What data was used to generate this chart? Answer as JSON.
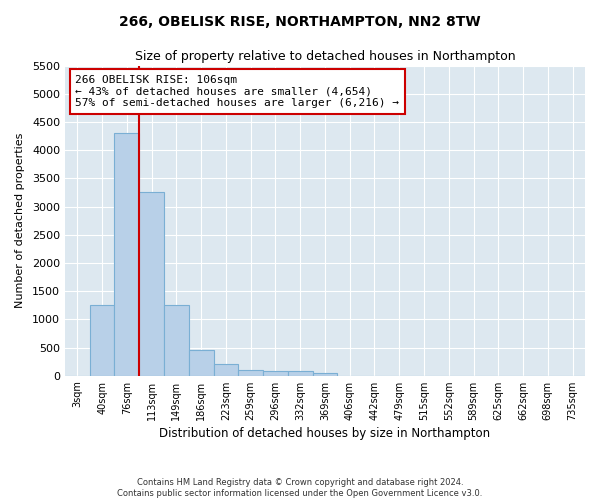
{
  "title1": "266, OBELISK RISE, NORTHAMPTON, NN2 8TW",
  "title2": "Size of property relative to detached houses in Northampton",
  "xlabel": "Distribution of detached houses by size in Northampton",
  "ylabel": "Number of detached properties",
  "categories": [
    "3sqm",
    "40sqm",
    "76sqm",
    "113sqm",
    "149sqm",
    "186sqm",
    "223sqm",
    "259sqm",
    "296sqm",
    "332sqm",
    "369sqm",
    "406sqm",
    "442sqm",
    "479sqm",
    "515sqm",
    "552sqm",
    "589sqm",
    "625sqm",
    "662sqm",
    "698sqm",
    "735sqm"
  ],
  "bar_values": [
    0,
    1250,
    4300,
    3250,
    1250,
    450,
    200,
    100,
    75,
    75,
    50,
    0,
    0,
    0,
    0,
    0,
    0,
    0,
    0,
    0,
    0
  ],
  "bar_color": "#b8d0e8",
  "bar_edge_color": "#7aafd4",
  "vline_x": 3,
  "vline_color": "#cc0000",
  "annotation_text": "266 OBELISK RISE: 106sqm\n← 43% of detached houses are smaller (4,654)\n57% of semi-detached houses are larger (6,216) →",
  "annotation_box_color": "#ffffff",
  "annotation_box_edgecolor": "#cc0000",
  "ylim": [
    0,
    5500
  ],
  "yticks": [
    0,
    500,
    1000,
    1500,
    2000,
    2500,
    3000,
    3500,
    4000,
    4500,
    5000,
    5500
  ],
  "bg_color": "#dde8f0",
  "footnote": "Contains HM Land Registry data © Crown copyright and database right 2024.\nContains public sector information licensed under the Open Government Licence v3.0."
}
